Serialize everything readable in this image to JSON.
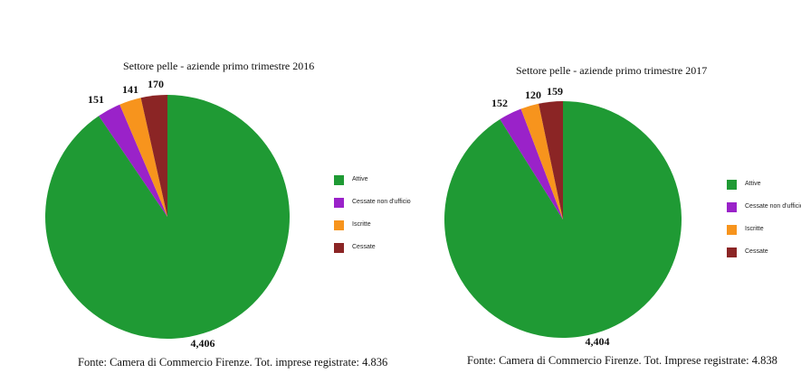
{
  "chart_data": [
    {
      "type": "pie",
      "title": "Settore pelle - aziende primo trimestre 2016",
      "slices": [
        {
          "label": "Attive",
          "value": 4406,
          "display": "4,406",
          "color": "#1f9a34"
        },
        {
          "label": "Cessate non d'ufficio",
          "value": 151,
          "display": "151",
          "color": "#9a22c9"
        },
        {
          "label": "Iscritte",
          "value": 141,
          "display": "141",
          "color": "#f7941d"
        },
        {
          "label": "Cessate",
          "value": 170,
          "display": "170",
          "color": "#8b2525"
        }
      ],
      "legend_position": "right",
      "footer": "Fonte: Camera di Commercio Firenze. Tot. imprese registrate: 4.836"
    },
    {
      "type": "pie",
      "title": "Settore pelle - aziende primo trimestre 2017",
      "slices": [
        {
          "label": "Attive",
          "value": 4404,
          "display": "4,404",
          "color": "#1f9a34"
        },
        {
          "label": "Cessate non d'ufficio",
          "value": 152,
          "display": "152",
          "color": "#9a22c9"
        },
        {
          "label": "Iscritte",
          "value": 120,
          "display": "120",
          "color": "#f7941d"
        },
        {
          "label": "Cessate",
          "value": 159,
          "display": "159",
          "color": "#8b2525"
        }
      ],
      "legend_position": "right",
      "footer": "Fonte: Camera di Commercio Firenze. Tot. Imprese registrate: 4.838"
    }
  ]
}
